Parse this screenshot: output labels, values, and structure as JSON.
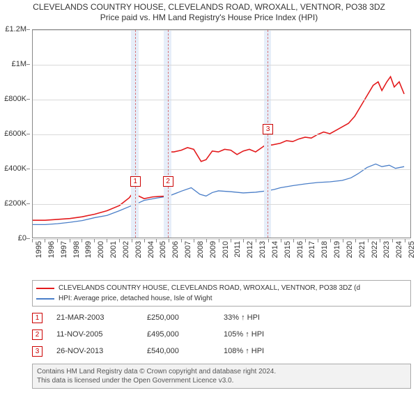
{
  "title_line1": "CLEVELANDS COUNTRY HOUSE, CLEVELANDS ROAD, WROXALL, VENTNOR, PO38 3DZ",
  "title_line2": "Price paid vs. HM Land Registry's House Price Index (HPI)",
  "chart": {
    "type": "line",
    "x_start_year": 1995,
    "x_end_year": 2025.5,
    "x_tick_years": [
      1995,
      1996,
      1997,
      1998,
      1999,
      2000,
      2001,
      2002,
      2003,
      2004,
      2005,
      2006,
      2007,
      2008,
      2009,
      2010,
      2011,
      2012,
      2013,
      2014,
      2015,
      2016,
      2017,
      2018,
      2019,
      2020,
      2021,
      2022,
      2023,
      2024,
      2025
    ],
    "ylim": [
      0,
      1200000
    ],
    "y_ticks": [
      0,
      200000,
      400000,
      600000,
      800000,
      1000000,
      1200000
    ],
    "y_tick_labels": [
      "£0",
      "£200K",
      "£400K",
      "£600K",
      "£800K",
      "£1M",
      "£1.2M"
    ],
    "grid_color": "#d9d9d9",
    "background_color": "#ffffff",
    "highlight_band_color": "#e6eef9",
    "highlight_bands": [
      {
        "from": 2002.9,
        "to": 2003.5
      },
      {
        "from": 2005.55,
        "to": 2006.15
      },
      {
        "from": 2013.6,
        "to": 2014.2
      }
    ],
    "vertical_dashes": [
      2003.22,
      2005.86,
      2013.9
    ],
    "markers_on_plot": [
      {
        "n": "1",
        "year": 2003.22,
        "y": 280000
      },
      {
        "n": "2",
        "year": 2005.86,
        "y": 280000
      },
      {
        "n": "3",
        "year": 2013.9,
        "y": 580000
      }
    ],
    "series_subject": {
      "color": "#e31a1c",
      "line_width": 1.6,
      "points": [
        [
          1995.0,
          100000
        ],
        [
          1996.0,
          100000
        ],
        [
          1997.0,
          105000
        ],
        [
          1998.0,
          110000
        ],
        [
          1999.0,
          120000
        ],
        [
          2000.0,
          135000
        ],
        [
          2001.0,
          155000
        ],
        [
          2002.0,
          185000
        ],
        [
          2002.8,
          230000
        ],
        [
          2003.0,
          250000
        ],
        [
          2003.2,
          250000
        ],
        [
          2003.22,
          250000
        ],
        [
          2003.4,
          245000
        ],
        [
          2004.0,
          225000
        ],
        [
          2004.7,
          235000
        ],
        [
          2005.3,
          238000
        ],
        [
          2005.85,
          240000
        ],
        [
          2005.86,
          495000
        ],
        [
          2006.4,
          495000
        ],
        [
          2007.0,
          505000
        ],
        [
          2007.5,
          520000
        ],
        [
          2008.0,
          510000
        ],
        [
          2008.6,
          440000
        ],
        [
          2009.0,
          450000
        ],
        [
          2009.5,
          500000
        ],
        [
          2010.0,
          495000
        ],
        [
          2010.5,
          510000
        ],
        [
          2011.0,
          505000
        ],
        [
          2011.5,
          480000
        ],
        [
          2012.0,
          500000
        ],
        [
          2012.5,
          510000
        ],
        [
          2013.0,
          495000
        ],
        [
          2013.5,
          520000
        ],
        [
          2013.9,
          540000
        ],
        [
          2014.3,
          535000
        ],
        [
          2015.0,
          545000
        ],
        [
          2015.5,
          560000
        ],
        [
          2016.0,
          555000
        ],
        [
          2016.5,
          570000
        ],
        [
          2017.0,
          580000
        ],
        [
          2017.5,
          575000
        ],
        [
          2018.0,
          595000
        ],
        [
          2018.5,
          610000
        ],
        [
          2019.0,
          600000
        ],
        [
          2019.5,
          620000
        ],
        [
          2020.0,
          640000
        ],
        [
          2020.5,
          660000
        ],
        [
          2021.0,
          700000
        ],
        [
          2021.5,
          760000
        ],
        [
          2022.0,
          820000
        ],
        [
          2022.5,
          880000
        ],
        [
          2022.9,
          900000
        ],
        [
          2023.2,
          850000
        ],
        [
          2023.6,
          900000
        ],
        [
          2023.9,
          930000
        ],
        [
          2024.2,
          870000
        ],
        [
          2024.6,
          900000
        ],
        [
          2025.0,
          830000
        ]
      ]
    },
    "series_hpi": {
      "color": "#4a7ec8",
      "line_width": 1.3,
      "points": [
        [
          1995.0,
          75000
        ],
        [
          1996.0,
          75000
        ],
        [
          1997.0,
          80000
        ],
        [
          1998.0,
          88000
        ],
        [
          1999.0,
          98000
        ],
        [
          2000.0,
          115000
        ],
        [
          2001.0,
          128000
        ],
        [
          2002.0,
          155000
        ],
        [
          2003.0,
          185000
        ],
        [
          2003.22,
          190000
        ],
        [
          2004.0,
          215000
        ],
        [
          2005.0,
          228000
        ],
        [
          2005.86,
          238000
        ],
        [
          2006.0,
          240000
        ],
        [
          2007.0,
          268000
        ],
        [
          2007.8,
          288000
        ],
        [
          2008.5,
          250000
        ],
        [
          2009.0,
          240000
        ],
        [
          2009.5,
          260000
        ],
        [
          2010.0,
          270000
        ],
        [
          2011.0,
          265000
        ],
        [
          2012.0,
          258000
        ],
        [
          2013.0,
          262000
        ],
        [
          2013.9,
          270000
        ],
        [
          2014.5,
          278000
        ],
        [
          2015.0,
          288000
        ],
        [
          2016.0,
          300000
        ],
        [
          2017.0,
          310000
        ],
        [
          2018.0,
          318000
        ],
        [
          2019.0,
          322000
        ],
        [
          2020.0,
          330000
        ],
        [
          2020.7,
          345000
        ],
        [
          2021.3,
          370000
        ],
        [
          2022.0,
          405000
        ],
        [
          2022.7,
          425000
        ],
        [
          2023.2,
          410000
        ],
        [
          2023.8,
          418000
        ],
        [
          2024.3,
          400000
        ],
        [
          2025.0,
          410000
        ]
      ]
    },
    "sale_dots": {
      "color": "#e31a1c",
      "radius": 3.5,
      "points": [
        [
          2003.22,
          250000
        ],
        [
          2005.86,
          495000
        ],
        [
          2013.9,
          540000
        ]
      ]
    }
  },
  "legend": {
    "items": [
      {
        "color": "#e31a1c",
        "label": "CLEVELANDS COUNTRY HOUSE, CLEVELANDS ROAD, WROXALL, VENTNOR, PO38 3DZ (d"
      },
      {
        "color": "#4a7ec8",
        "label": "HPI: Average price, detached house, Isle of Wight"
      }
    ]
  },
  "sales": [
    {
      "n": "1",
      "date": "21-MAR-2003",
      "price": "£250,000",
      "delta": "33% ↑ HPI"
    },
    {
      "n": "2",
      "date": "11-NOV-2005",
      "price": "£495,000",
      "delta": "105% ↑ HPI"
    },
    {
      "n": "3",
      "date": "26-NOV-2013",
      "price": "£540,000",
      "delta": "108% ↑ HPI"
    }
  ],
  "footer_line1": "Contains HM Land Registry data © Crown copyright and database right 2024.",
  "footer_line2": "This data is licensed under the Open Government Licence v3.0."
}
